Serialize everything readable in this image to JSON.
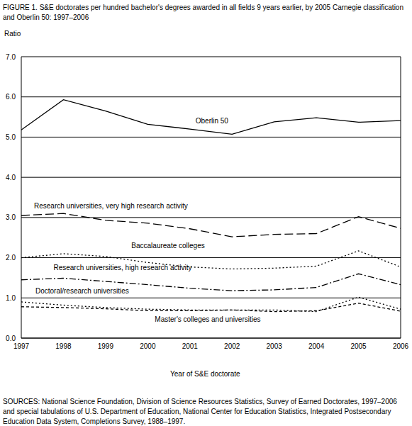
{
  "chart_data": {
    "type": "line",
    "title": "FIGURE 1.  S&E doctorates per hundred bachelor's degrees awarded in all fields 9 years earlier, by 2005 Carnegie classification and Oberlin 50: 1997–2006",
    "y_label": "Ratio",
    "x_label": "Year of S&E doctorate",
    "source": "SOURCES: National Science Foundation, Division of Science Resources Statistics, Survey of Earned Doctorates, 1997–2006 and special tabulations of U.S. Department of Education, National Center for Education Statistics, Integrated Postsecondary Education Data System, Completions Survey, 1988–1997.",
    "x": [
      1997,
      1998,
      1999,
      2000,
      2001,
      2002,
      2003,
      2004,
      2005,
      2006
    ],
    "xlim": [
      1997,
      2006
    ],
    "xticks": [
      1997,
      1998,
      1999,
      2000,
      2001,
      2002,
      2003,
      2004,
      2005,
      2006
    ],
    "ylim": [
      0,
      7
    ],
    "yticks": [
      {
        "value": 0,
        "label": "0.0"
      },
      {
        "value": 1,
        "label": "1.0"
      },
      {
        "value": 2,
        "label": "2.0"
      },
      {
        "value": 3,
        "label": "3.0"
      },
      {
        "value": 4,
        "label": "4.0"
      },
      {
        "value": 5,
        "label": "5.0"
      },
      {
        "value": 6,
        "label": "6.0"
      },
      {
        "value": 7,
        "label": "7.0"
      }
    ],
    "grid": true,
    "series": [
      {
        "name": "Oberlin 50",
        "color": "#000000",
        "line_style": "solid",
        "values": [
          5.18,
          5.93,
          5.65,
          5.32,
          5.2,
          5.07,
          5.38,
          5.48,
          5.37,
          5.41
        ]
      },
      {
        "name": "Research universities, very high research activity",
        "color": "#000000",
        "line_style": "long_dash",
        "values": [
          3.05,
          3.1,
          2.93,
          2.86,
          2.72,
          2.52,
          2.58,
          2.6,
          3.02,
          2.73
        ]
      },
      {
        "name": "Baccalaureate colleges",
        "color": "#000000",
        "line_style": "dotted",
        "values": [
          2.0,
          2.1,
          2.03,
          1.88,
          1.77,
          1.72,
          1.74,
          1.79,
          2.17,
          1.77
        ]
      },
      {
        "name": "Research universities, high research activity",
        "color": "#000000",
        "line_style": "dash_dot",
        "values": [
          1.45,
          1.49,
          1.41,
          1.33,
          1.24,
          1.18,
          1.2,
          1.26,
          1.6,
          1.33
        ]
      },
      {
        "name": "Doctoral/research universities",
        "color": "#000000",
        "line_style": "dotted",
        "values": [
          0.9,
          0.82,
          0.76,
          0.72,
          0.7,
          0.7,
          0.7,
          0.66,
          1.02,
          0.72
        ]
      },
      {
        "name": "Master's colleges and universities",
        "color": "#000000",
        "line_style": "short_dash",
        "values": [
          0.78,
          0.76,
          0.73,
          0.68,
          0.68,
          0.7,
          0.66,
          0.68,
          0.87,
          0.67
        ]
      }
    ]
  }
}
